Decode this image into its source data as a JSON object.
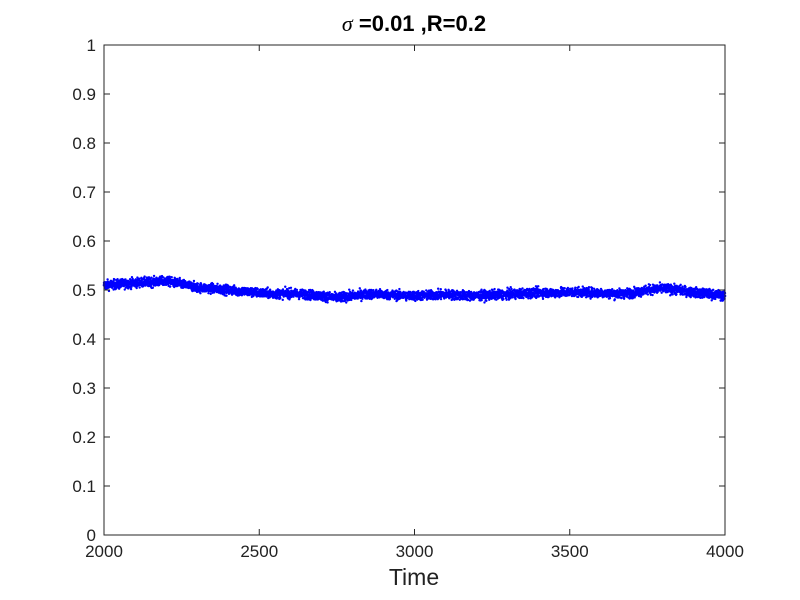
{
  "chart_data": {
    "type": "scatter",
    "title_symbol": "σ",
    "title_rest": " =0.01 ,R=0.2",
    "xlabel": "Time",
    "ylabel": "",
    "xlim": [
      2000,
      4000
    ],
    "ylim": [
      0,
      1
    ],
    "x_ticks": [
      "2000",
      "2500",
      "3000",
      "3500",
      "4000"
    ],
    "y_ticks": [
      "0",
      "0.1",
      "0.2",
      "0.3",
      "0.4",
      "0.5",
      "0.6",
      "0.7",
      "0.8",
      "0.9",
      "1"
    ],
    "grid": false,
    "legend": "none",
    "series": [
      {
        "color": "#0000ff",
        "band_halfwidth": 0.015,
        "x": [
          2000,
          2050,
          2100,
          2150,
          2200,
          2250,
          2300,
          2350,
          2400,
          2450,
          2500,
          2550,
          2600,
          2650,
          2700,
          2750,
          2800,
          2850,
          2900,
          2950,
          3000,
          3050,
          3100,
          3150,
          3200,
          3250,
          3300,
          3350,
          3400,
          3450,
          3500,
          3550,
          3600,
          3650,
          3700,
          3750,
          3800,
          3850,
          3900,
          3950,
          4000
        ],
        "y": [
          0.51,
          0.512,
          0.515,
          0.516,
          0.518,
          0.512,
          0.505,
          0.503,
          0.5,
          0.497,
          0.494,
          0.492,
          0.493,
          0.491,
          0.488,
          0.484,
          0.488,
          0.492,
          0.491,
          0.489,
          0.488,
          0.489,
          0.491,
          0.489,
          0.488,
          0.49,
          0.491,
          0.493,
          0.495,
          0.494,
          0.496,
          0.495,
          0.494,
          0.492,
          0.494,
          0.5,
          0.503,
          0.5,
          0.495,
          0.492,
          0.488
        ]
      }
    ]
  }
}
